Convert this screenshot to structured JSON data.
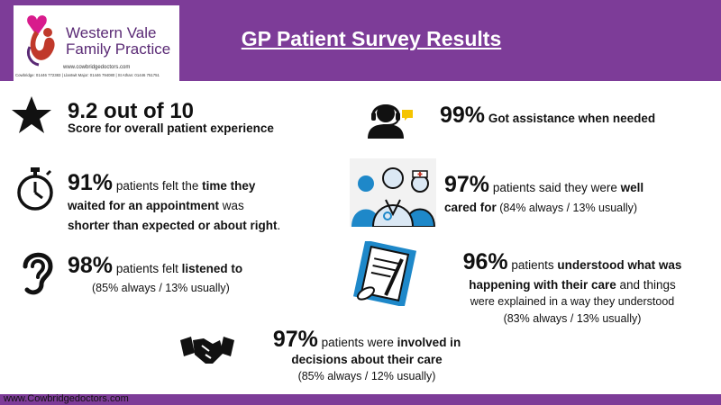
{
  "header": {
    "logo": {
      "name_line1": "Western Vale",
      "name_line2": "Family Practice",
      "url": "www.cowbridgedoctors.com",
      "phones": "Cowbridge: 01446 772383 | Llantwit Major: 01446 794080 | St Athan: 01446 751751"
    },
    "title": "GP Patient Survey Results"
  },
  "icons": [
    "star-icon",
    "headset-icon",
    "stopwatch-icon",
    "medical-staff-icon",
    "ear-icon",
    "clipboard-icon",
    "handshake-icon"
  ],
  "stats": {
    "overall": {
      "value": "9.2 out of 10",
      "text": "Score for overall patient experience"
    },
    "assistance": {
      "value": "99%",
      "text": "Got assistance when needed"
    },
    "wait": {
      "value": "91%",
      "pre": "patients felt the ",
      "bold1": "time they",
      "bold2": "waited for an appointment",
      "mid": " was",
      "bold3": "shorter than expected or about right",
      "end": "."
    },
    "cared": {
      "value": "97%",
      "pre": "patients said they were ",
      "bold": "well",
      "bold2": "cared for",
      "detail": " (84% always / 13% usually)"
    },
    "listened": {
      "value": "98%",
      "pre": "patients felt ",
      "bold": "listened to",
      "detail": "(85% always / 13% usually)"
    },
    "understood": {
      "value": "96%",
      "pre": "patients ",
      "bold1": "understood what was",
      "bold2": "happening with their care",
      "rest": " and things",
      "line3": "were explained in a way they understood",
      "detail": "(83% always / 13% usually)"
    },
    "involved": {
      "value": "97%",
      "pre": "patients were ",
      "bold1": "involved in",
      "bold2": "decisions about their care",
      "detail": "(85% always / 12% usually)"
    }
  },
  "footer": {
    "url": "www.Cowbridgedoctors.com"
  },
  "colors": {
    "brand_purple": "#7d3c98",
    "logo_red": "#c0392b",
    "logo_pink": "#d81b8c",
    "accent_yellow": "#f5c400",
    "accent_blue": "#1e88c9"
  }
}
